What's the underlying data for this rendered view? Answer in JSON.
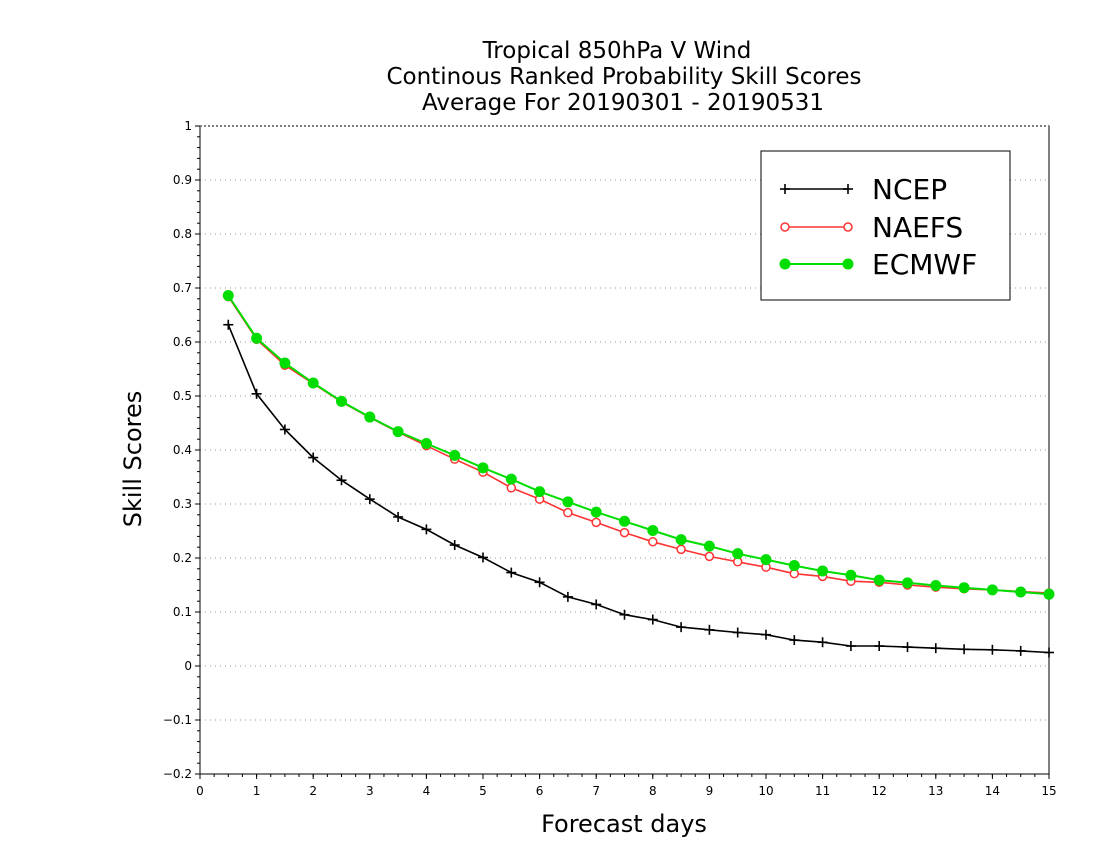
{
  "chart_data": {
    "type": "line",
    "title_lines": [
      "Tropical 850hPa V Wind",
      "Continous Ranked Probability Skill Scores",
      "Average For 20190301 - 20190531"
    ],
    "xlabel": "Forecast days",
    "ylabel": "Skill Scores",
    "xlim": [
      0,
      15
    ],
    "ylim": [
      -0.2,
      1
    ],
    "xticks": [
      0,
      1,
      2,
      3,
      4,
      5,
      6,
      7,
      8,
      9,
      10,
      11,
      12,
      13,
      14,
      15
    ],
    "xtick_labels": [
      "0",
      "1",
      "2",
      "3",
      "4",
      "5",
      "6",
      "7",
      "8",
      "9",
      "10",
      "11",
      "12",
      "13",
      "14",
      "15"
    ],
    "yticks": [
      -0.2,
      -0.1,
      0,
      0.1,
      0.2,
      0.3,
      0.4,
      0.5,
      0.6,
      0.7,
      0.8,
      0.9,
      1
    ],
    "ytick_labels": [
      "-0.2",
      "-0.1",
      "0",
      "0.1",
      "0.2",
      "0.3",
      "0.4",
      "0.5",
      "0.6",
      "0.7",
      "0.8",
      "0.9",
      "1"
    ],
    "grid": "horizontal dotted",
    "legend_position": "top-right",
    "x": [
      0.5,
      1,
      1.5,
      2,
      2.5,
      3,
      3.5,
      4,
      4.5,
      5,
      5.5,
      6,
      6.5,
      7,
      7.5,
      8,
      8.5,
      9,
      9.5,
      10,
      10.5,
      11,
      11.5,
      12,
      12.5,
      13,
      13.5,
      14,
      14.5,
      15
    ],
    "series": [
      {
        "name": "NCEP",
        "color": "#000000",
        "marker": "plus",
        "values": [
          0.632,
          0.504,
          0.438,
          0.386,
          0.344,
          0.309,
          0.276,
          0.253,
          0.224,
          0.201,
          0.173,
          0.155,
          0.128,
          0.114,
          0.095,
          0.086,
          0.072,
          0.067,
          0.062,
          0.058,
          0.048,
          0.044,
          0.037,
          0.037,
          0.035,
          0.033,
          0.031,
          0.03,
          0.028,
          0.025
        ]
      },
      {
        "name": "NAEFS",
        "color": "#ff3333",
        "marker": "open-circle",
        "values": [
          0.684,
          0.605,
          0.557,
          0.523,
          0.489,
          0.46,
          0.433,
          0.408,
          0.383,
          0.359,
          0.33,
          0.309,
          0.284,
          0.266,
          0.247,
          0.23,
          0.216,
          0.203,
          0.193,
          0.183,
          0.171,
          0.166,
          0.157,
          0.155,
          0.15,
          0.146,
          0.143,
          0.141,
          0.138,
          0.135
        ]
      },
      {
        "name": "ECMWF",
        "color": "#00dd00",
        "marker": "filled-circle",
        "values": [
          0.686,
          0.607,
          0.561,
          0.524,
          0.49,
          0.461,
          0.434,
          0.412,
          0.39,
          0.367,
          0.346,
          0.323,
          0.304,
          0.285,
          0.268,
          0.251,
          0.234,
          0.222,
          0.208,
          0.197,
          0.186,
          0.176,
          0.168,
          0.159,
          0.154,
          0.149,
          0.145,
          0.141,
          0.137,
          0.133
        ]
      }
    ]
  }
}
